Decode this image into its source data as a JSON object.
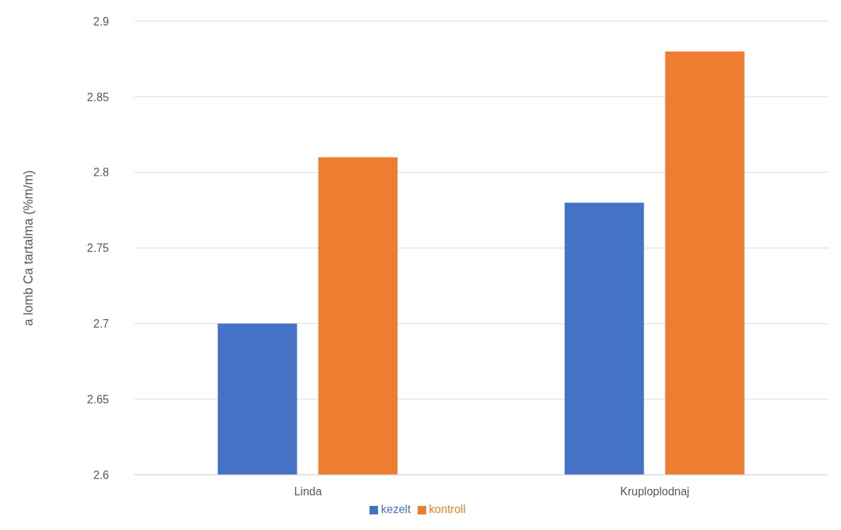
{
  "chart_data": {
    "type": "bar",
    "ylabel": "a lomb Ca tartalma (%m/m)",
    "categories": [
      "Linda",
      "Kruploplodnaj"
    ],
    "series": [
      {
        "name": "kezelt",
        "color": "#4472c4",
        "values": [
          2.7,
          2.78
        ]
      },
      {
        "name": "kontroll",
        "color": "#ed7d31",
        "values": [
          2.81,
          2.88
        ]
      }
    ],
    "ylim": [
      2.6,
      2.9
    ],
    "yticks": [
      2.6,
      2.65,
      2.7,
      2.75,
      2.8,
      2.85,
      2.9
    ],
    "grid": "y",
    "legend": "bottom"
  }
}
